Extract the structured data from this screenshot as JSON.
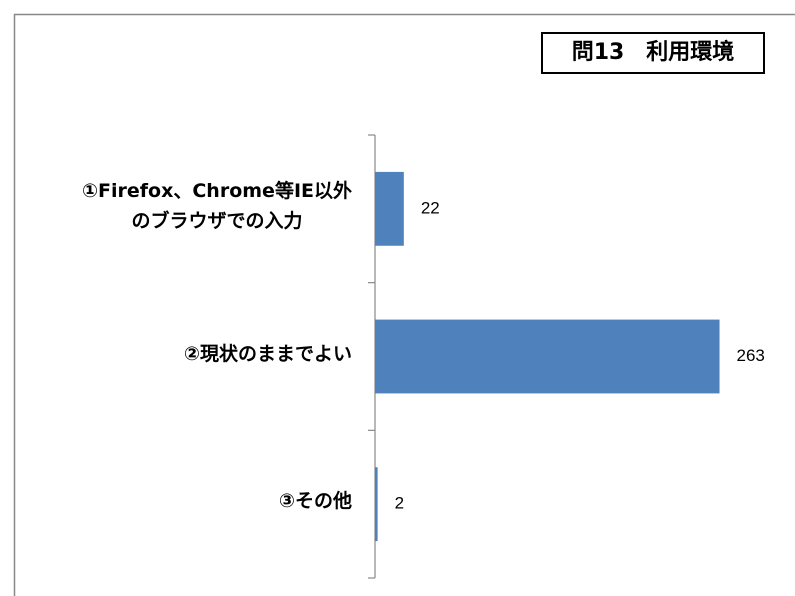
{
  "chart_data": {
    "type": "barh",
    "title": "問13　利用環境",
    "categories": [
      "①Firefox、Chrome等IE以外\nのブラウザでの入力",
      "②現状のままでよい",
      "③その他"
    ],
    "values": [
      22,
      263,
      2
    ],
    "color": "#4f81bd",
    "xlim": [
      0,
      300
    ]
  }
}
